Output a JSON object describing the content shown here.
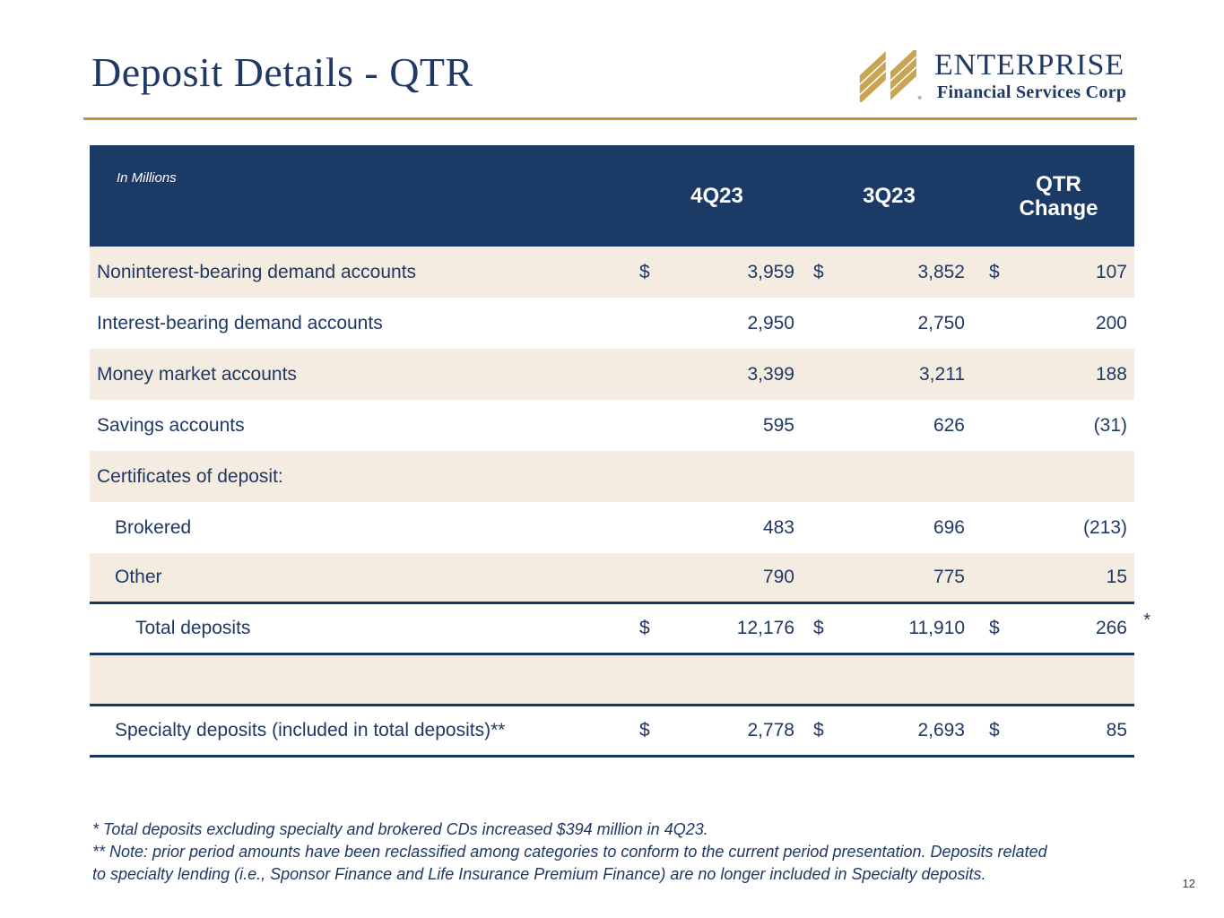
{
  "title": "Deposit Details - QTR",
  "logo": {
    "brand": "ENTERPRISE",
    "subtitle": "Financial Services Corp",
    "icon": "gold-diagonal-stripes"
  },
  "table": {
    "units_label": "In Millions",
    "columns": [
      "4Q23",
      "3Q23",
      "QTR\nChange"
    ],
    "rows": [
      {
        "label": "Noninterest-bearing demand accounts",
        "indent": 0,
        "d1": "$",
        "v1": "3,959",
        "d2": "$",
        "v2": "3,852",
        "d3": "$",
        "v3": "107"
      },
      {
        "label": "Interest-bearing demand accounts",
        "indent": 0,
        "d1": "",
        "v1": "2,950",
        "d2": "",
        "v2": "2,750",
        "d3": "",
        "v3": "200"
      },
      {
        "label": "Money market accounts",
        "indent": 0,
        "d1": "",
        "v1": "3,399",
        "d2": "",
        "v2": "3,211",
        "d3": "",
        "v3": "188"
      },
      {
        "label": "Savings accounts",
        "indent": 0,
        "d1": "",
        "v1": "595",
        "d2": "",
        "v2": "626",
        "d3": "",
        "v3": "(31)"
      },
      {
        "label": "Certificates of deposit:",
        "indent": 0,
        "d1": "",
        "v1": "",
        "d2": "",
        "v2": "",
        "d3": "",
        "v3": ""
      },
      {
        "label": "Brokered",
        "indent": 1,
        "d1": "",
        "v1": "483",
        "d2": "",
        "v2": "696",
        "d3": "",
        "v3": "(213)"
      },
      {
        "label": "Other",
        "indent": 1,
        "d1": "",
        "v1": "790",
        "d2": "",
        "v2": "775",
        "d3": "",
        "v3": "15",
        "rule_bottom": true
      },
      {
        "label": "Total deposits",
        "indent": 2,
        "d1": "$",
        "v1": "12,176",
        "d2": "$",
        "v2": "11,910",
        "d3": "$",
        "v3": "266",
        "rule_bottom": true,
        "note_marker": "*"
      },
      {
        "label": "",
        "indent": 0,
        "d1": "",
        "v1": "",
        "d2": "",
        "v2": "",
        "d3": "",
        "v3": "",
        "rule_bottom": true
      },
      {
        "label": "Specialty deposits (included in total deposits)**",
        "indent": 1,
        "d1": "$",
        "v1": "2,778",
        "d2": "$",
        "v2": "2,693",
        "d3": "$",
        "v3": "85",
        "rule_bottom": true
      }
    ]
  },
  "footnotes": {
    "line1": "* Total deposits excluding specialty and brokered CDs increased $394 million in 4Q23.",
    "line2": "** Note: prior period amounts have been reclassified among categories to conform to the current period presentation. Deposits related",
    "line3": "to specialty lending (i.e., Sponsor Finance and Life Insurance Premium Finance) are no longer included in Specialty deposits."
  },
  "page_number": "12",
  "colors": {
    "header_navy": "#1C3A66",
    "text_navy": "#1F3864",
    "row_beige": "#F4ECE1",
    "gold_rule": "#B6953C",
    "logo_gold": "#C9A453",
    "table_rule": "#17365D"
  }
}
